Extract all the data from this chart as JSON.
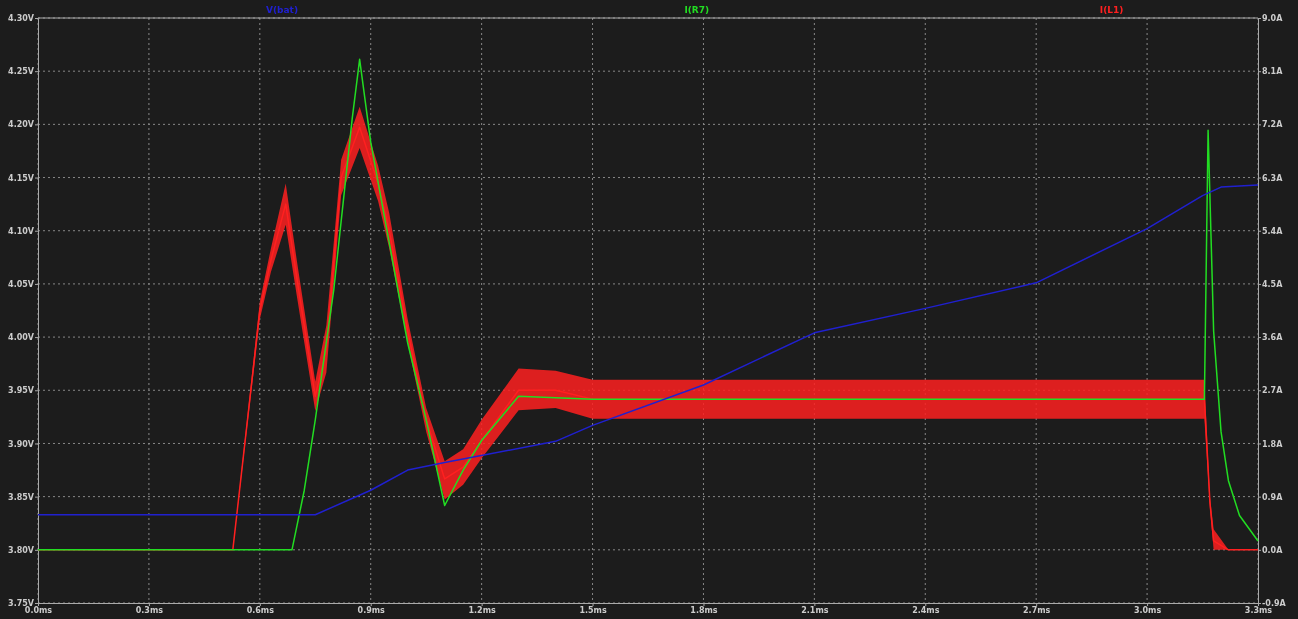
{
  "chart_data": {
    "type": "line",
    "legend": "top",
    "grid": true,
    "line_style": "solid",
    "marker": "none",
    "xlim": [
      0,
      3.3
    ],
    "xticks": [
      {
        "value": 0,
        "label": "0.0ms"
      },
      {
        "value": 0.3,
        "label": "0.3ms"
      },
      {
        "value": 0.6,
        "label": "0.6ms"
      },
      {
        "value": 0.9,
        "label": "0.9ms"
      },
      {
        "value": 1.2,
        "label": "1.2ms"
      },
      {
        "value": 1.5,
        "label": "1.5ms"
      },
      {
        "value": 1.8,
        "label": "1.8ms"
      },
      {
        "value": 2.1,
        "label": "2.1ms"
      },
      {
        "value": 2.4,
        "label": "2.4ms"
      },
      {
        "value": 2.7,
        "label": "2.7ms"
      },
      {
        "value": 3.0,
        "label": "3.0ms"
      },
      {
        "value": 3.3,
        "label": "3.3ms"
      }
    ],
    "ylim": [
      3.75,
      4.3
    ],
    "yticks": [
      {
        "value": 3.75,
        "label": "3.75V"
      },
      {
        "value": 3.8,
        "label": "3.80V"
      },
      {
        "value": 3.85,
        "label": "3.85V"
      },
      {
        "value": 3.9,
        "label": "3.90V"
      },
      {
        "value": 3.95,
        "label": "3.95V"
      },
      {
        "value": 4.0,
        "label": "4.00V"
      },
      {
        "value": 4.05,
        "label": "4.05V"
      },
      {
        "value": 4.1,
        "label": "4.10V"
      },
      {
        "value": 4.15,
        "label": "4.15V"
      },
      {
        "value": 4.2,
        "label": "4.20V"
      },
      {
        "value": 4.25,
        "label": "4.25V"
      },
      {
        "value": 4.3,
        "label": "4.30V"
      }
    ],
    "y2lim": [
      -0.9,
      9.0
    ],
    "y2ticks": [
      {
        "value": -0.9,
        "label": "-0.9A"
      },
      {
        "value": 0,
        "label": "0.0A"
      },
      {
        "value": 0.9,
        "label": "0.9A"
      },
      {
        "value": 1.8,
        "label": "1.8A"
      },
      {
        "value": 2.7,
        "label": "2.7A"
      },
      {
        "value": 3.6,
        "label": "3.6A"
      },
      {
        "value": 4.5,
        "label": "4.5A"
      },
      {
        "value": 5.4,
        "label": "5.4A"
      },
      {
        "value": 6.3,
        "label": "6.3A"
      },
      {
        "value": 7.2,
        "label": "7.2A"
      },
      {
        "value": 8.1,
        "label": "8.1A"
      },
      {
        "value": 9.0,
        "label": "9.0A"
      }
    ],
    "series": [
      {
        "name": "V(bat)",
        "color": "#2020d0",
        "x": [
          0,
          0.75,
          0.9,
          1.0,
          1.1,
          1.4,
          1.5,
          1.8,
          2.1,
          2.4,
          2.7,
          3.0,
          3.15,
          3.2,
          3.3
        ],
        "values": [
          3.833,
          3.833,
          3.856,
          3.875,
          3.882,
          3.902,
          3.917,
          3.955,
          4.004,
          4.027,
          4.051,
          4.102,
          4.133,
          4.141,
          4.143
        ]
      },
      {
        "name": "I(R7)",
        "color": "#22dd22",
        "axis": "y2",
        "x": [
          0,
          0.687,
          0.72,
          0.75,
          0.8,
          0.85,
          0.87,
          0.9,
          0.95,
          1.0,
          1.05,
          1.1,
          1.15,
          1.2,
          1.3,
          1.5,
          2.0,
          2.5,
          3.0,
          3.155,
          3.165,
          3.18,
          3.2,
          3.22,
          3.25,
          3.3
        ],
        "values": [
          0,
          0,
          1.0,
          2.2,
          4.4,
          7.3,
          8.3,
          6.9,
          5.2,
          3.5,
          2.2,
          0.75,
          1.35,
          1.85,
          2.6,
          2.55,
          2.55,
          2.55,
          2.55,
          2.55,
          7.1,
          3.7,
          2.0,
          1.17,
          0.58,
          0.15
        ]
      },
      {
        "name": "I(L1)",
        "color": "#ff2020",
        "axis": "y2",
        "x": [
          0,
          0.527,
          0.6,
          0.63,
          0.67,
          0.7,
          0.75,
          0.78,
          0.82,
          0.87,
          0.92,
          0.95,
          1.0,
          1.05,
          1.1,
          1.15,
          1.2,
          1.3,
          1.4,
          1.5,
          1.8,
          2.1,
          2.4,
          2.7,
          3.0,
          3.155,
          3.17,
          3.18,
          3.22,
          3.3
        ],
        "values": [
          0,
          0,
          4.05,
          4.9,
          5.85,
          4.6,
          2.6,
          3.4,
          6.3,
          7.15,
          6.2,
          5.4,
          3.7,
          2.2,
          1.2,
          1.4,
          1.85,
          2.7,
          2.7,
          2.55,
          2.55,
          2.55,
          2.55,
          2.55,
          2.55,
          2.55,
          0.8,
          0.15,
          0,
          0
        ],
        "lower": [
          0,
          0,
          3.9,
          4.7,
          5.5,
          4.3,
          2.35,
          3.0,
          6.0,
          6.8,
          5.9,
          5.1,
          3.5,
          2.0,
          0.85,
          1.1,
          1.55,
          2.36,
          2.4,
          2.22,
          2.22,
          2.22,
          2.22,
          2.22,
          2.22,
          2.22,
          0.7,
          0,
          0,
          0
        ],
        "upper": [
          0,
          0,
          4.2,
          5.1,
          6.2,
          4.9,
          2.85,
          3.8,
          6.6,
          7.5,
          6.5,
          5.7,
          3.9,
          2.4,
          1.5,
          1.7,
          2.2,
          3.07,
          3.03,
          2.88,
          2.88,
          2.88,
          2.88,
          2.88,
          2.88,
          2.88,
          0.9,
          0.35,
          0,
          0
        ]
      }
    ]
  }
}
